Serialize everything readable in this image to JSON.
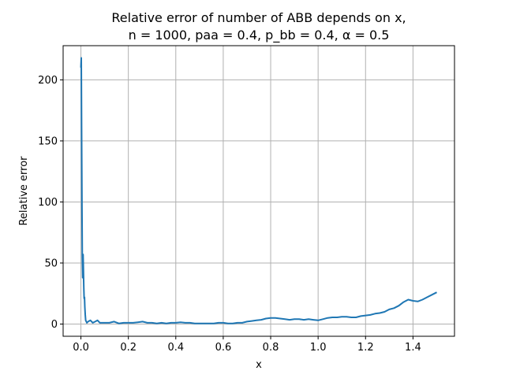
{
  "chart_data": {
    "type": "line",
    "title": "Relative error of number of ABB depends on x,",
    "subtitle": "n = 1000, paa = 0.4, p_bb = 0.4, α = 0.5",
    "xlabel": "x",
    "ylabel": "Relative error",
    "xlim": [
      -0.075,
      1.575
    ],
    "ylim": [
      -10,
      228
    ],
    "x_ticks": [
      0.0,
      0.2,
      0.4,
      0.6,
      0.8,
      1.0,
      1.2,
      1.4
    ],
    "x_tick_labels": [
      "0.0",
      "0.2",
      "0.4",
      "0.6",
      "0.8",
      "1.0",
      "1.2",
      "1.4"
    ],
    "y_ticks": [
      0,
      50,
      100,
      150,
      200
    ],
    "y_tick_labels": [
      "0",
      "50",
      "100",
      "150",
      "200"
    ],
    "grid": true,
    "color": "#1f77b4",
    "series": [
      {
        "x": [
          0.0,
          0.0015,
          0.003,
          0.0045,
          0.006,
          0.0075,
          0.009,
          0.0105,
          0.012,
          0.0135,
          0.015,
          0.0165,
          0.018,
          0.02,
          0.025,
          0.03,
          0.04,
          0.05,
          0.06,
          0.07,
          0.08,
          0.1,
          0.12,
          0.14,
          0.16,
          0.18,
          0.2,
          0.22,
          0.24,
          0.26,
          0.28,
          0.3,
          0.32,
          0.34,
          0.36,
          0.38,
          0.4,
          0.42,
          0.44,
          0.46,
          0.48,
          0.5,
          0.52,
          0.54,
          0.56,
          0.58,
          0.6,
          0.62,
          0.64,
          0.66,
          0.68,
          0.7,
          0.72,
          0.74,
          0.76,
          0.78,
          0.8,
          0.82,
          0.84,
          0.86,
          0.88,
          0.9,
          0.92,
          0.94,
          0.96,
          0.98,
          1.0,
          1.02,
          1.04,
          1.06,
          1.08,
          1.1,
          1.12,
          1.14,
          1.16,
          1.18,
          1.2,
          1.22,
          1.24,
          1.26,
          1.28,
          1.3,
          1.32,
          1.34,
          1.36,
          1.38,
          1.4,
          1.42,
          1.44,
          1.46,
          1.48,
          1.5
        ],
        "y": [
          210,
          218,
          160,
          95,
          55,
          38,
          57,
          45,
          30,
          21,
          22,
          14,
          8,
          3,
          1,
          2,
          3,
          1,
          2,
          3,
          1,
          1,
          1,
          2,
          0.5,
          1,
          1,
          1,
          1.5,
          2,
          1,
          1,
          0.5,
          1,
          0.5,
          1,
          1,
          1.5,
          1,
          1,
          0.5,
          0.5,
          0.5,
          0.5,
          0.5,
          1,
          1,
          0.5,
          0.5,
          1,
          1,
          2,
          2.5,
          3,
          3.5,
          4.5,
          5,
          5,
          4.5,
          4,
          3.5,
          4,
          4,
          3.5,
          4,
          3.5,
          3,
          4,
          5,
          5.5,
          5.5,
          6,
          6,
          5.5,
          5.5,
          6.5,
          7,
          7.5,
          8.5,
          9,
          10,
          12,
          13,
          15,
          18,
          20,
          19,
          18.5,
          20,
          22,
          24,
          26
        ]
      }
    ]
  }
}
